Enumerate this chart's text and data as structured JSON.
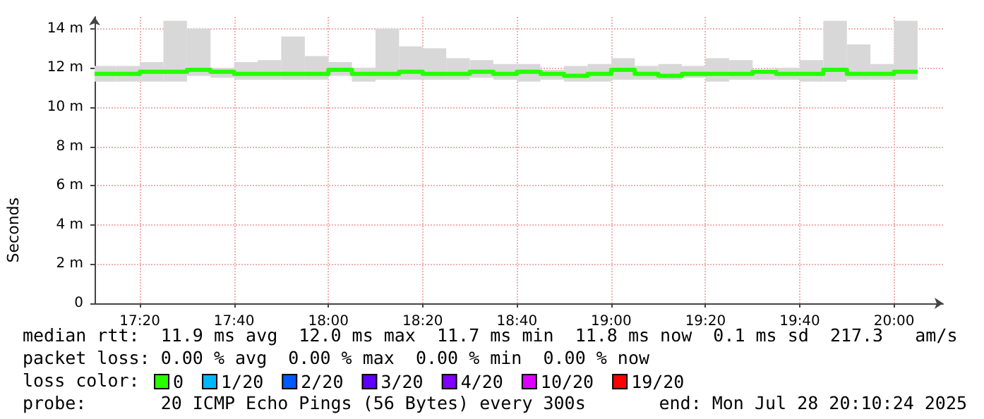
{
  "chart_data": {
    "type": "step",
    "ylabel": "Seconds",
    "legend": "bottom",
    "legend_title": "loss color:",
    "grid": true,
    "x": [
      "2025-07-28T17:10:24",
      "2025-07-28T17:15",
      "2025-07-28T17:20",
      "2025-07-28T17:25",
      "2025-07-28T17:30",
      "2025-07-28T17:35",
      "2025-07-28T17:40",
      "2025-07-28T17:45",
      "2025-07-28T17:50",
      "2025-07-28T17:55",
      "2025-07-28T18:00",
      "2025-07-28T18:05",
      "2025-07-28T18:10",
      "2025-07-28T18:15",
      "2025-07-28T18:20",
      "2025-07-28T18:25",
      "2025-07-28T18:30",
      "2025-07-28T18:35",
      "2025-07-28T18:40",
      "2025-07-28T18:45",
      "2025-07-28T18:50",
      "2025-07-28T18:55",
      "2025-07-28T19:00",
      "2025-07-28T19:05",
      "2025-07-28T19:10",
      "2025-07-28T19:15",
      "2025-07-28T19:20",
      "2025-07-28T19:25",
      "2025-07-28T19:30",
      "2025-07-28T19:35",
      "2025-07-28T19:40",
      "2025-07-28T19:45",
      "2025-07-28T19:50",
      "2025-07-28T19:55",
      "2025-07-28T20:00",
      "2025-07-28T20:05"
    ],
    "series": [
      {
        "name": "0",
        "color": "#26ff00",
        "values": [
          11.7,
          11.7,
          11.8,
          11.8,
          11.9,
          11.8,
          11.7,
          11.7,
          11.7,
          11.7,
          11.9,
          11.7,
          11.7,
          11.8,
          11.7,
          11.7,
          11.8,
          11.7,
          11.8,
          11.7,
          11.6,
          11.7,
          11.9,
          11.7,
          11.6,
          11.7,
          11.7,
          11.7,
          11.8,
          11.7,
          11.7,
          11.9,
          11.7,
          11.7,
          11.8,
          11.8
        ],
        "lower": [
          11.3,
          11.3,
          11.3,
          11.3,
          11.6,
          11.5,
          11.4,
          11.4,
          11.4,
          11.4,
          11.6,
          11.3,
          11.4,
          11.4,
          11.4,
          11.4,
          11.5,
          11.4,
          11.3,
          11.4,
          11.3,
          11.3,
          11.4,
          11.4,
          11.4,
          11.5,
          11.3,
          11.4,
          11.4,
          11.4,
          11.3,
          11.3,
          11.4,
          11.4,
          11.4,
          11.4
        ],
        "upper": [
          12.1,
          12.1,
          12.3,
          14.4,
          14.0,
          12.0,
          12.3,
          12.4,
          13.6,
          12.6,
          12.3,
          12.0,
          14.0,
          13.1,
          13.0,
          12.5,
          12.4,
          12.2,
          12.2,
          11.9,
          12.1,
          12.2,
          12.5,
          12.1,
          12.2,
          12.1,
          12.5,
          12.4,
          11.9,
          12.0,
          12.4,
          14.4,
          13.2,
          12.2,
          14.4,
          14.4
        ]
      },
      {
        "name": "1/20",
        "color": "#00b8ff",
        "values": [
          null,
          null,
          null,
          null,
          null,
          null,
          null,
          null,
          null,
          null,
          null,
          null,
          null,
          null,
          null,
          null,
          null,
          null,
          null,
          null,
          null,
          null,
          null,
          null,
          null,
          null,
          null,
          null,
          null,
          null,
          null,
          null,
          null,
          null,
          null,
          null
        ]
      },
      {
        "name": "2/20",
        "color": "#0059ff",
        "values": [
          null,
          null,
          null,
          null,
          null,
          null,
          null,
          null,
          null,
          null,
          null,
          null,
          null,
          null,
          null,
          null,
          null,
          null,
          null,
          null,
          null,
          null,
          null,
          null,
          null,
          null,
          null,
          null,
          null,
          null,
          null,
          null,
          null,
          null,
          null,
          null
        ]
      },
      {
        "name": "3/20",
        "color": "#5e00ff",
        "values": [
          null,
          null,
          null,
          null,
          null,
          null,
          null,
          null,
          null,
          null,
          null,
          null,
          null,
          null,
          null,
          null,
          null,
          null,
          null,
          null,
          null,
          null,
          null,
          null,
          null,
          null,
          null,
          null,
          null,
          null,
          null,
          null,
          null,
          null,
          null,
          null
        ]
      },
      {
        "name": "4/20",
        "color": "#7e00ff",
        "values": [
          null,
          null,
          null,
          null,
          null,
          null,
          null,
          null,
          null,
          null,
          null,
          null,
          null,
          null,
          null,
          null,
          null,
          null,
          null,
          null,
          null,
          null,
          null,
          null,
          null,
          null,
          null,
          null,
          null,
          null,
          null,
          null,
          null,
          null,
          null,
          null
        ]
      },
      {
        "name": "10/20",
        "color": "#dd00ff",
        "values": [
          null,
          null,
          null,
          null,
          null,
          null,
          null,
          null,
          null,
          null,
          null,
          null,
          null,
          null,
          null,
          null,
          null,
          null,
          null,
          null,
          null,
          null,
          null,
          null,
          null,
          null,
          null,
          null,
          null,
          null,
          null,
          null,
          null,
          null,
          null,
          null
        ]
      },
      {
        "name": "19/20",
        "color": "#ff0000",
        "values": [
          null,
          null,
          null,
          null,
          null,
          null,
          null,
          null,
          null,
          null,
          null,
          null,
          null,
          null,
          null,
          null,
          null,
          null,
          null,
          null,
          null,
          null,
          null,
          null,
          null,
          null,
          null,
          null,
          null,
          null,
          null,
          null,
          null,
          null,
          null,
          null
        ]
      }
    ],
    "xlim": [
      "2025-07-28T17:10:24",
      "2025-07-28T20:10:24"
    ],
    "xticks": [
      {
        "value": "2025-07-28T17:20",
        "label": "17:20"
      },
      {
        "value": "2025-07-28T17:40",
        "label": "17:40"
      },
      {
        "value": "2025-07-28T18:00",
        "label": "18:00"
      },
      {
        "value": "2025-07-28T18:20",
        "label": "18:20"
      },
      {
        "value": "2025-07-28T18:40",
        "label": "18:40"
      },
      {
        "value": "2025-07-28T19:00",
        "label": "19:00"
      },
      {
        "value": "2025-07-28T19:20",
        "label": "19:20"
      },
      {
        "value": "2025-07-28T19:40",
        "label": "19:40"
      },
      {
        "value": "2025-07-28T20:00",
        "label": "20:00"
      }
    ],
    "ylim": [
      0,
      14.6
    ],
    "yticks": [
      0,
      {
        "value": 2,
        "label": "2 m"
      },
      {
        "value": 4,
        "label": "4 m"
      },
      {
        "value": 6,
        "label": "6 m"
      },
      {
        "value": 8,
        "label": "8 m"
      },
      {
        "value": 10,
        "label": "10 m"
      },
      {
        "value": 12,
        "label": "12 m"
      },
      {
        "value": 14,
        "label": "14 m"
      }
    ],
    "annotations": [
      "median rtt:  11.9 ms avg  12.0 ms max  11.7 ms min  11.8 ms now  0.1 ms sd  217.3   am/s",
      "packet loss: 0.00 % avg  0.00 % max  0.00 % min  0.00 % now",
      "probe:       20 ICMP Echo Pings (56 Bytes) every 300s",
      "end: Mon Jul 28 20:10:24 2025"
    ]
  }
}
